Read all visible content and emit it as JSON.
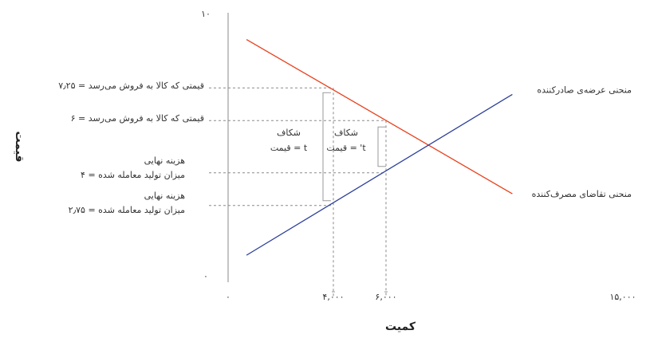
{
  "chart_data": {
    "type": "line",
    "xlabel": "کمیت",
    "ylabel": "قیمت",
    "xlim": [
      0,
      15000
    ],
    "ylim": [
      0,
      10
    ],
    "x_ticks": [
      {
        "value": 0,
        "label": "۰"
      },
      {
        "value": 4000,
        "label": "۴,۰۰۰"
      },
      {
        "value": 6000,
        "label": "۶,۰۰۰"
      },
      {
        "value": 15000,
        "label": "۱۵,۰۰۰"
      }
    ],
    "y_ticks": [
      {
        "value": 0,
        "label": "۰"
      },
      {
        "value": 10,
        "label": "۱۰"
      }
    ],
    "series": [
      {
        "name": "منحنی تقاضای مصرف‌کننده",
        "color": "#e8401c",
        "x": [
          700,
          10800
        ],
        "y": [
          9.1,
          3.2
        ]
      },
      {
        "name": "منحنی عرضه‌ی صادرکننده",
        "color": "#2b3f9a",
        "x": [
          700,
          10800
        ],
        "y": [
          0.85,
          7.0
        ]
      }
    ],
    "reference_lines": [
      {
        "price": 7.25,
        "quantity": 4000,
        "label": "قیمتی که کالا به فروش می‌رسد = ۷٫۲۵"
      },
      {
        "price": 6,
        "quantity": 6000,
        "label": "قیمتی که کالا به فروش می‌رسد = ۶"
      },
      {
        "price": 4,
        "quantity": 6000,
        "label_line1": "هزینه نهایی",
        "label_line2": "میزان تولید معامله شده = ۴"
      },
      {
        "price": 2.75,
        "quantity": 4000,
        "label_line1": "هزینه نهایی",
        "label_line2": "میزان تولید معامله شده = ۲٫۷۵"
      }
    ],
    "gaps": [
      {
        "line1": "شکاف",
        "line2": "قیمت = t",
        "from": 2.75,
        "to": 7.25
      },
      {
        "line1": "شکاف",
        "line2": "قیمت = 't",
        "from": 4,
        "to": 6
      }
    ]
  }
}
